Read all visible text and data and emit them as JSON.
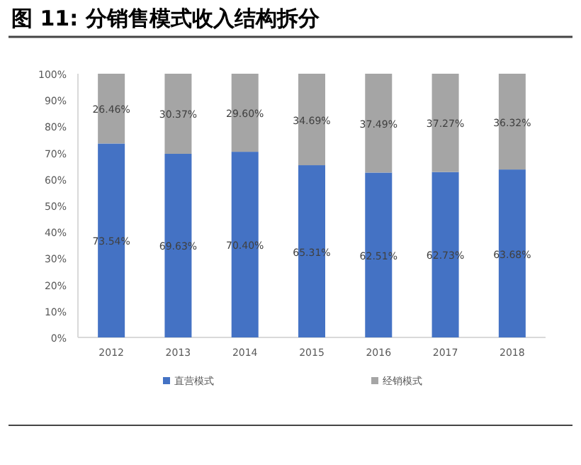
{
  "chart_data": {
    "type": "bar",
    "title": "图 11: 分销售模式收入结构拆分",
    "stacked": true,
    "categories": [
      "2012",
      "2013",
      "2014",
      "2015",
      "2016",
      "2017",
      "2018"
    ],
    "series": [
      {
        "name": "直营模式",
        "color": "#4472c4",
        "values": [
          73.54,
          69.63,
          70.4,
          65.31,
          62.51,
          62.73,
          63.68
        ],
        "value_labels": [
          "73.54%",
          "69.63%",
          "70.40%",
          "65.31%",
          "62.51%",
          "62.73%",
          "63.68%"
        ]
      },
      {
        "name": "经销模式",
        "color": "#a5a5a5",
        "values": [
          26.46,
          30.37,
          29.6,
          34.69,
          37.49,
          37.27,
          36.32
        ],
        "value_labels": [
          "26.46%",
          "30.37%",
          "29.60%",
          "34.69%",
          "37.49%",
          "37.27%",
          "36.32%"
        ]
      }
    ],
    "ylim": [
      0,
      100
    ],
    "yticks": [
      {
        "value": 0,
        "label": "0%"
      },
      {
        "value": 10,
        "label": "10%"
      },
      {
        "value": 20,
        "label": "20%"
      },
      {
        "value": 30,
        "label": "30%"
      },
      {
        "value": 40,
        "label": "40%"
      },
      {
        "value": 50,
        "label": "50%"
      },
      {
        "value": 60,
        "label": "60%"
      },
      {
        "value": 70,
        "label": "70%"
      },
      {
        "value": 80,
        "label": "80%"
      },
      {
        "value": 90,
        "label": "90%"
      },
      {
        "value": 100,
        "label": "100%"
      }
    ],
    "legend": "bottom"
  }
}
